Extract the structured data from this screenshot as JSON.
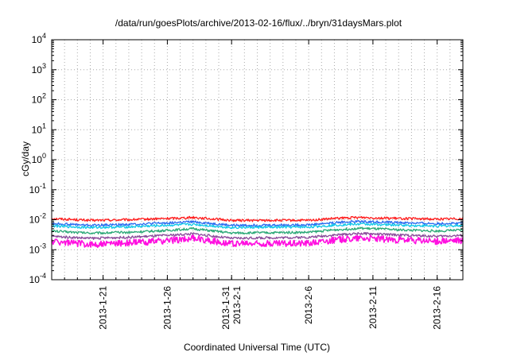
{
  "chart_data": {
    "type": "line",
    "title": "/data/run/goesPlots/archive/2013-02-16/flux/../bryn/31daysMars.plot",
    "xlabel": "Coordinated Universal Time (UTC)",
    "ylabel": "cGy/day",
    "y_scale": "log",
    "ylim": [
      0.0001,
      10000
    ],
    "xlim": [
      "2013-01-17",
      "2013-02-18"
    ],
    "grid": true,
    "legend": "none",
    "y_ticks": [
      {
        "value": 0.0001,
        "base": "10",
        "exp": "-4"
      },
      {
        "value": 0.001,
        "base": "10",
        "exp": "-3"
      },
      {
        "value": 0.01,
        "base": "10",
        "exp": "-2"
      },
      {
        "value": 0.1,
        "base": "10",
        "exp": "-1"
      },
      {
        "value": 1,
        "base": "10",
        "exp": "0"
      },
      {
        "value": 10,
        "base": "10",
        "exp": "1"
      },
      {
        "value": 100,
        "base": "10",
        "exp": "2"
      },
      {
        "value": 1000,
        "base": "10",
        "exp": "3"
      },
      {
        "value": 10000,
        "base": "10",
        "exp": "4"
      }
    ],
    "x_ticks": [
      {
        "date": "2013-01-21",
        "lines": [
          "2013-1-21"
        ]
      },
      {
        "date": "2013-01-26",
        "lines": [
          "2013-1-26"
        ]
      },
      {
        "date": "2013-01-31",
        "lines": [
          "2013-1-31",
          "2013-2-1"
        ]
      },
      {
        "date": "2013-02-06",
        "lines": [
          "2013-2-6"
        ]
      },
      {
        "date": "2013-02-11",
        "lines": [
          "2013-2-11"
        ]
      },
      {
        "date": "2013-02-16",
        "lines": [
          "2013-2-16"
        ]
      }
    ],
    "series": [
      {
        "color": "#ff1e1e",
        "x": [
          "2013-01-17",
          "2013-01-20",
          "2013-01-23",
          "2013-01-26",
          "2013-01-28",
          "2013-01-31",
          "2013-02-03",
          "2013-02-06",
          "2013-02-08",
          "2013-02-10",
          "2013-02-13",
          "2013-02-16",
          "2013-02-18"
        ],
        "values": [
          0.011,
          0.0095,
          0.01,
          0.011,
          0.012,
          0.0095,
          0.0095,
          0.0095,
          0.011,
          0.012,
          0.011,
          0.0105,
          0.011
        ]
      },
      {
        "color": "#2b6cf0",
        "x": [
          "2013-01-17",
          "2013-01-20",
          "2013-01-23",
          "2013-01-26",
          "2013-01-28",
          "2013-01-31",
          "2013-02-03",
          "2013-02-06",
          "2013-02-08",
          "2013-02-10",
          "2013-02-13",
          "2013-02-16",
          "2013-02-18"
        ],
        "values": [
          0.0075,
          0.0065,
          0.007,
          0.0078,
          0.0085,
          0.0065,
          0.0066,
          0.0068,
          0.008,
          0.0088,
          0.008,
          0.0074,
          0.0078
        ]
      },
      {
        "color": "#10c8e8",
        "x": [
          "2013-01-17",
          "2013-01-20",
          "2013-01-23",
          "2013-01-26",
          "2013-01-28",
          "2013-01-31",
          "2013-02-03",
          "2013-02-06",
          "2013-02-08",
          "2013-02-10",
          "2013-02-13",
          "2013-02-16",
          "2013-02-18"
        ],
        "values": [
          0.0062,
          0.0055,
          0.0058,
          0.0065,
          0.007,
          0.0055,
          0.0056,
          0.0057,
          0.0066,
          0.0072,
          0.0066,
          0.0061,
          0.0064
        ]
      },
      {
        "color": "#2aa876",
        "x": [
          "2013-01-17",
          "2013-01-20",
          "2013-01-23",
          "2013-01-26",
          "2013-01-28",
          "2013-01-31",
          "2013-02-03",
          "2013-02-06",
          "2013-02-08",
          "2013-02-10",
          "2013-02-13",
          "2013-02-16",
          "2013-02-18"
        ],
        "values": [
          0.0042,
          0.0036,
          0.0038,
          0.0044,
          0.005,
          0.0036,
          0.0037,
          0.0038,
          0.0046,
          0.0052,
          0.0046,
          0.0042,
          0.0045
        ]
      },
      {
        "color": "#8a4a9a",
        "x": [
          "2013-01-17",
          "2013-01-20",
          "2013-01-23",
          "2013-01-26",
          "2013-01-28",
          "2013-01-31",
          "2013-02-03",
          "2013-02-06",
          "2013-02-08",
          "2013-02-10",
          "2013-02-13",
          "2013-02-16",
          "2013-02-18"
        ],
        "values": [
          0.0028,
          0.0024,
          0.0026,
          0.003,
          0.0034,
          0.0024,
          0.0025,
          0.0026,
          0.0031,
          0.0035,
          0.0031,
          0.0028,
          0.003
        ]
      },
      {
        "color": "#ff10e0",
        "x": [
          "2013-01-17",
          "2013-01-20",
          "2013-01-23",
          "2013-01-26",
          "2013-01-28",
          "2013-01-31",
          "2013-02-03",
          "2013-02-06",
          "2013-02-08",
          "2013-02-10",
          "2013-02-13",
          "2013-02-16",
          "2013-02-18"
        ],
        "values": [
          0.0019,
          0.0015,
          0.0017,
          0.002,
          0.0024,
          0.0016,
          0.0016,
          0.0017,
          0.0021,
          0.0025,
          0.0021,
          0.0019,
          0.002
        ]
      }
    ]
  }
}
